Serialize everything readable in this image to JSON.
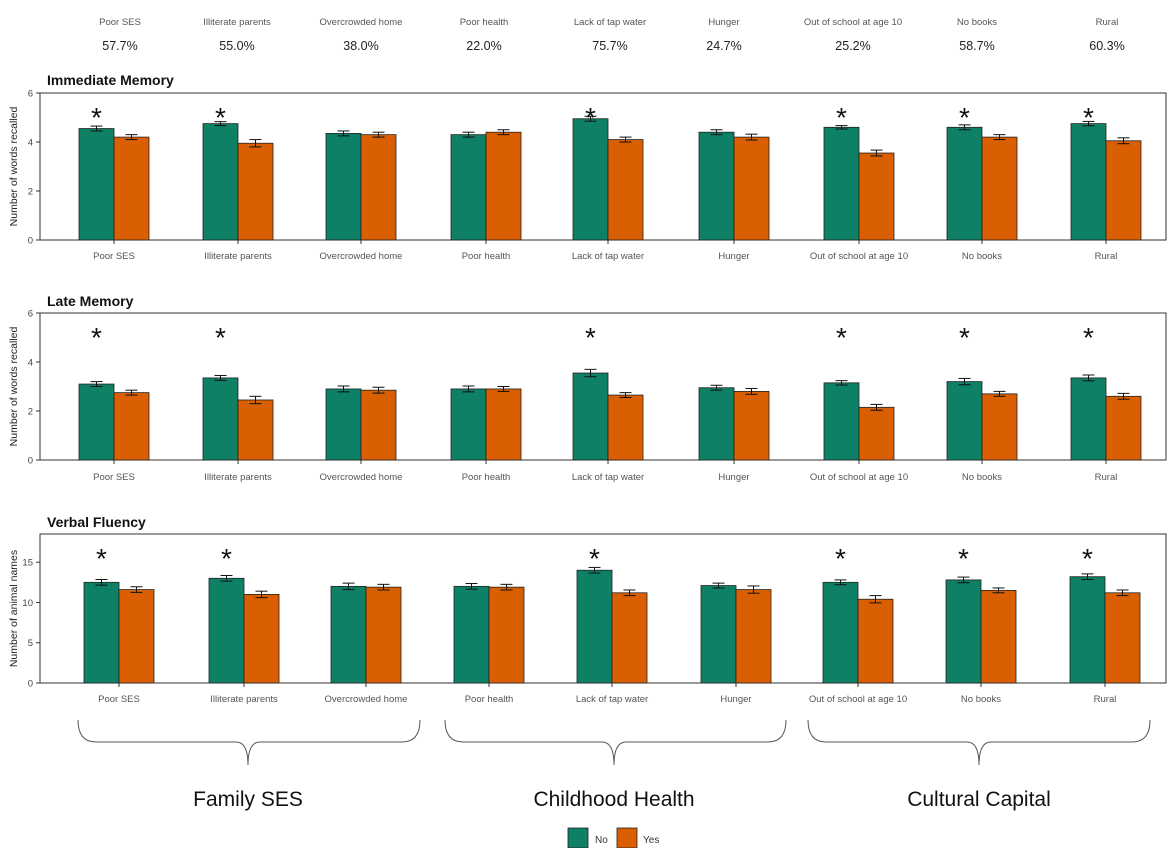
{
  "header": {
    "labels": [
      "Poor SES",
      "Illiterate parents",
      "Overcrowded home",
      "Poor health",
      "Lack of tap water",
      "Hunger",
      "Out of school at age 10",
      "No books",
      "Rural"
    ],
    "percents": [
      "57.7%",
      "55.0%",
      "38.0%",
      "22.0%",
      "75.7%",
      "24.7%",
      "25.2%",
      "58.7%",
      "60.3%"
    ]
  },
  "colors": {
    "no": "#0d8065",
    "yes": "#d95f02"
  },
  "chart_data": [
    {
      "type": "bar",
      "title": "Immediate Memory",
      "ylabel": "Number of words recalled",
      "ylim": [
        0,
        6
      ],
      "yticks": [
        0,
        2,
        4,
        6
      ],
      "categories": [
        "Poor SES",
        "Illiterate parents",
        "Overcrowded home",
        "Poor health",
        "Lack of tap water",
        "Hunger",
        "Out of school at age 10",
        "No books",
        "Rural"
      ],
      "series": [
        {
          "name": "No",
          "values": [
            4.55,
            4.75,
            4.35,
            4.3,
            4.95,
            4.4,
            4.6,
            4.6,
            4.75
          ],
          "errors": [
            0.1,
            0.08,
            0.1,
            0.1,
            0.1,
            0.1,
            0.07,
            0.1,
            0.09
          ]
        },
        {
          "name": "Yes",
          "values": [
            4.2,
            3.95,
            4.3,
            4.4,
            4.1,
            4.2,
            3.55,
            4.2,
            4.05
          ],
          "errors": [
            0.1,
            0.15,
            0.1,
            0.1,
            0.1,
            0.12,
            0.12,
            0.1,
            0.12
          ]
        }
      ],
      "significant": [
        true,
        true,
        false,
        false,
        true,
        false,
        true,
        true,
        true
      ]
    },
    {
      "type": "bar",
      "title": "Late Memory",
      "ylabel": "Number of words recalled",
      "ylim": [
        0,
        6
      ],
      "yticks": [
        0,
        2,
        4,
        6
      ],
      "categories": [
        "Poor SES",
        "Illiterate parents",
        "Overcrowded home",
        "Poor health",
        "Lack of tap water",
        "Hunger",
        "Out of school at age 10",
        "No books",
        "Rural"
      ],
      "series": [
        {
          "name": "No",
          "values": [
            3.1,
            3.35,
            2.9,
            2.9,
            3.55,
            2.95,
            3.15,
            3.2,
            3.35
          ],
          "errors": [
            0.1,
            0.1,
            0.12,
            0.12,
            0.15,
            0.1,
            0.09,
            0.13,
            0.12
          ]
        },
        {
          "name": "Yes",
          "values": [
            2.75,
            2.45,
            2.85,
            2.9,
            2.65,
            2.8,
            2.15,
            2.7,
            2.6
          ],
          "errors": [
            0.1,
            0.15,
            0.12,
            0.1,
            0.1,
            0.12,
            0.12,
            0.1,
            0.12
          ]
        }
      ],
      "significant": [
        true,
        true,
        false,
        false,
        true,
        false,
        true,
        true,
        true
      ]
    },
    {
      "type": "bar",
      "title": "Verbal Fluency",
      "ylabel": "Number of animal names",
      "ylim": [
        0,
        18.5
      ],
      "yticks": [
        0,
        5,
        10,
        15
      ],
      "categories": [
        "Poor SES",
        "Illiterate parents",
        "Overcrowded home",
        "Poor health",
        "Lack of tap water",
        "Hunger",
        "Out of school at age 10",
        "No books",
        "Rural"
      ],
      "series": [
        {
          "name": "No",
          "values": [
            12.5,
            13.0,
            12.0,
            12.0,
            14.0,
            12.1,
            12.5,
            12.8,
            13.2
          ],
          "errors": [
            0.35,
            0.35,
            0.4,
            0.35,
            0.35,
            0.3,
            0.3,
            0.35,
            0.35
          ]
        },
        {
          "name": "Yes",
          "values": [
            11.6,
            11.0,
            11.9,
            11.9,
            11.2,
            11.6,
            10.4,
            11.5,
            11.2
          ],
          "errors": [
            0.35,
            0.4,
            0.35,
            0.35,
            0.35,
            0.45,
            0.45,
            0.3,
            0.35
          ]
        }
      ],
      "significant": [
        true,
        true,
        false,
        false,
        true,
        false,
        true,
        true,
        true
      ]
    }
  ],
  "groups": [
    "Family SES",
    "Childhood Health",
    "Cultural Capital"
  ],
  "legend": [
    "No",
    "Yes"
  ],
  "significance_marker": "*"
}
